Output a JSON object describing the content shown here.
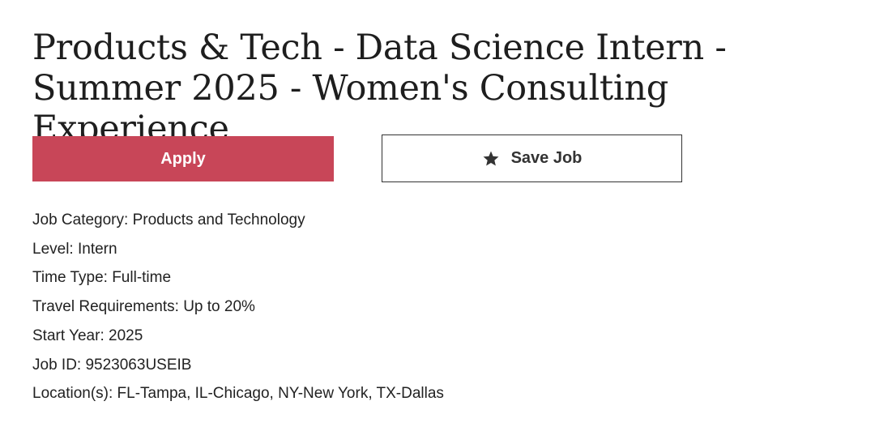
{
  "job": {
    "title": "Products & Tech - Data Science Intern - Summer 2025 - Women's Consulting Experience"
  },
  "actions": {
    "apply_label": "Apply",
    "save_label": "Save Job",
    "save_icon": "star-icon"
  },
  "details": [
    {
      "text": "Job Category: Products and Technology"
    },
    {
      "text": "Level: Intern"
    },
    {
      "text": "Time Type: Full-time"
    },
    {
      "text": "Travel Requirements: Up to 20%"
    },
    {
      "text": "Start Year: 2025"
    },
    {
      "text": "Job ID: 9523063USEIB"
    },
    {
      "text": "Location(s): FL-Tampa, IL-Chicago, NY-New York, TX-Dallas"
    }
  ],
  "colors": {
    "apply_bg": "#c84658",
    "text": "#222222",
    "border": "#333333"
  }
}
